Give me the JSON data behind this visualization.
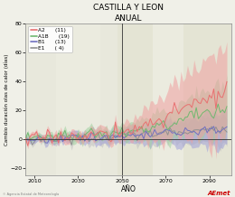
{
  "title": "CASTILLA Y LEON",
  "subtitle": "ANUAL",
  "xlabel": "AÑO",
  "ylabel": "Cambio duración olas de calor (días)",
  "xlim": [
    2006,
    2100
  ],
  "ylim": [
    -25,
    80
  ],
  "yticks": [
    -20,
    0,
    20,
    40,
    60,
    80
  ],
  "xticks": [
    2010,
    2030,
    2050,
    2070,
    2090
  ],
  "vline_x": 2050,
  "hline_y": 0,
  "bg_color": "#f0f0e8",
  "plot_bg": "#f0f0e8",
  "shade_color": "#e0e0d0",
  "legend_entries": [
    {
      "label": "A2",
      "count": "(11)",
      "color": "#e87070",
      "fill": "#f0a0a0"
    },
    {
      "label": "A1B",
      "count": "(19)",
      "color": "#70b870",
      "fill": "#a0d0a0"
    },
    {
      "label": "B1",
      "count": "(13)",
      "color": "#7070c0",
      "fill": "#a0a0d8"
    },
    {
      "label": "E1",
      "count": "( 4)",
      "color": "#909090",
      "fill": "#c0c0c0"
    }
  ],
  "x_start": 2006,
  "x_end": 2098,
  "seed": 17
}
